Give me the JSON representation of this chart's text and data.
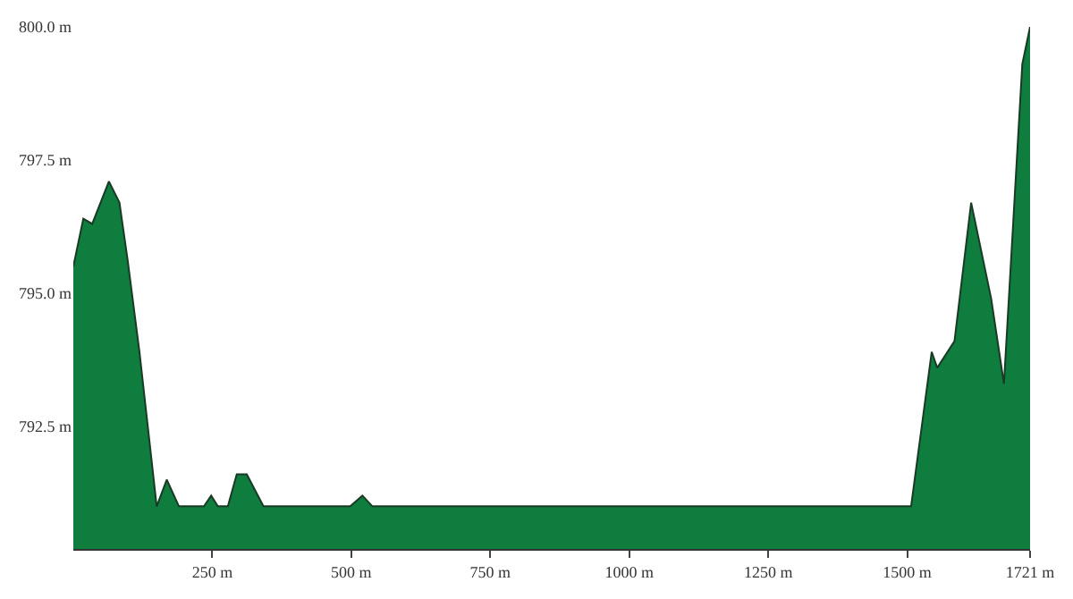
{
  "chart_data": {
    "type": "area",
    "x": [
      0,
      18,
      34,
      64,
      83,
      98,
      119,
      150,
      168,
      190,
      235,
      248,
      260,
      278,
      294,
      312,
      342,
      498,
      520,
      538,
      1507,
      1544,
      1554,
      1585,
      1615,
      1651,
      1674,
      1707,
      1721
    ],
    "values": [
      795.5,
      796.4,
      796.3,
      797.1,
      796.7,
      795.6,
      793.9,
      791.0,
      791.5,
      791.0,
      791.0,
      791.2,
      791.0,
      791.0,
      791.6,
      791.6,
      791.0,
      791.0,
      791.2,
      791.0,
      791.0,
      793.9,
      793.6,
      794.1,
      796.7,
      794.9,
      793.3,
      799.3,
      800.0
    ],
    "color": "#0e7d3e",
    "xlim": [
      0,
      1721
    ],
    "xticks": [
      {
        "value": 250,
        "label": "250 m"
      },
      {
        "value": 500,
        "label": "500 m"
      },
      {
        "value": 750,
        "label": "750 m"
      },
      {
        "value": 1000,
        "label": "1000 m"
      },
      {
        "value": 1250,
        "label": "1250 m"
      },
      {
        "value": 1500,
        "label": "1500 m"
      },
      {
        "value": 1721,
        "label": "1721 m"
      }
    ],
    "ylim": [
      790.2,
      800.0
    ],
    "yticks": [
      {
        "value": 792.5,
        "label": "792.5 m"
      },
      {
        "value": 795.0,
        "label": "795.0 m"
      },
      {
        "value": 797.5,
        "label": "797.5 m"
      },
      {
        "value": 800.0,
        "label": "800.0 m"
      }
    ],
    "line_style": "solid"
  }
}
